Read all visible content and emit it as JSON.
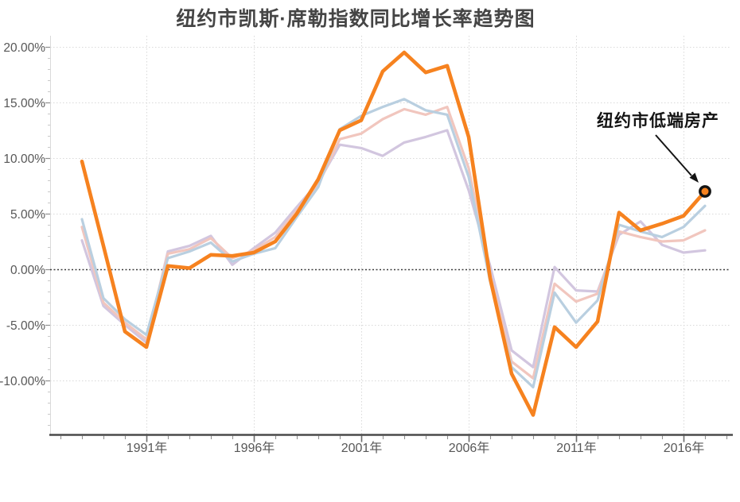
{
  "chart": {
    "title": "纽约市凯斯·席勒指数同比增长率趋势图"
  },
  "colors": {
    "accent_orange": "#f6821f",
    "light_blue": "#b9cfe0",
    "light_pink": "#f1c6be",
    "light_purple": "#d2c6df",
    "grid_light": "#d9d9d9",
    "zero_line": "#3b3b3b",
    "axis_line": "#4a4a4a",
    "tick_major": "#8f8f8f",
    "tick_minor": "#c9c9c9",
    "label_text": "#575757",
    "marker_ring": "#141414"
  },
  "chart_data": {
    "type": "line",
    "title": "纽约市凯斯·席勒指数同比增长率趋势图",
    "xlabel": "",
    "ylabel": "",
    "x": [
      1988,
      1989,
      1990,
      1991,
      1992,
      1993,
      1994,
      1995,
      1996,
      1997,
      1998,
      1999,
      2000,
      2001,
      2002,
      2003,
      2004,
      2005,
      2006,
      2007,
      2008,
      2009,
      2010,
      2011,
      2012,
      2013,
      2014,
      2015,
      2016,
      2017
    ],
    "x_ticks": [
      {
        "year": 1991,
        "label": "1991年"
      },
      {
        "year": 1996,
        "label": "1996年"
      },
      {
        "year": 2001,
        "label": "2001年"
      },
      {
        "year": 2006,
        "label": "2006年"
      },
      {
        "year": 2011,
        "label": "2011年"
      },
      {
        "year": 2016,
        "label": "2016年"
      }
    ],
    "y_ticks": [
      {
        "value": 20,
        "label": "20.00%"
      },
      {
        "value": 15,
        "label": "15.00%"
      },
      {
        "value": 10,
        "label": "10.00%"
      },
      {
        "value": 5,
        "label": "5.00%"
      },
      {
        "value": 0,
        "label": "0.00%"
      },
      {
        "value": -5,
        "label": "-5.00%"
      },
      {
        "value": -10,
        "label": "-10.00%"
      }
    ],
    "ylim": [
      -14.9,
      20.7
    ],
    "grid": true,
    "legend_position": "none",
    "series": [
      {
        "id": "unlabeled-light-purple",
        "name": "",
        "color": "#d2c6df",
        "width": 3.2,
        "emphasis": false,
        "values": [
          2.6,
          -3.3,
          -5.0,
          -6.6,
          1.6,
          2.1,
          3.0,
          0.4,
          1.9,
          3.3,
          5.6,
          7.8,
          11.2,
          10.9,
          10.2,
          11.4,
          11.9,
          12.5,
          7.1,
          0.3,
          -7.3,
          -8.8,
          0.2,
          -1.9,
          -2.0,
          3.1,
          4.3,
          2.2,
          1.5,
          1.7
        ]
      },
      {
        "id": "unlabeled-light-pink",
        "name": "",
        "color": "#f1c6be",
        "width": 3.2,
        "emphasis": false,
        "values": [
          3.8,
          -3.0,
          -4.8,
          -6.3,
          1.4,
          1.8,
          2.8,
          1.0,
          1.7,
          2.9,
          5.3,
          7.6,
          11.7,
          12.2,
          13.5,
          14.4,
          13.9,
          14.6,
          9.1,
          -0.4,
          -8.3,
          -9.8,
          -1.3,
          -2.9,
          -2.2,
          3.4,
          2.9,
          2.5,
          2.6,
          3.5
        ]
      },
      {
        "id": "unlabeled-light-blue",
        "name": "",
        "color": "#b9cfe0",
        "width": 3.2,
        "emphasis": false,
        "values": [
          4.5,
          -2.6,
          -4.5,
          -5.9,
          1.0,
          1.6,
          2.4,
          0.7,
          1.4,
          1.9,
          4.7,
          7.4,
          12.6,
          13.8,
          14.6,
          15.3,
          14.3,
          13.9,
          8.3,
          -1.1,
          -8.8,
          -10.6,
          -2.1,
          -4.8,
          -2.8,
          4.0,
          3.4,
          2.9,
          3.8,
          5.7
        ]
      },
      {
        "id": "highlighted-low-tier",
        "name": "纽约市低端房产",
        "color": "#f6821f",
        "width": 4.6,
        "emphasis": true,
        "values": [
          9.7,
          2.1,
          -5.6,
          -7.0,
          0.3,
          0.1,
          1.3,
          1.2,
          1.5,
          2.5,
          5.0,
          8.1,
          12.5,
          13.4,
          17.8,
          19.5,
          17.7,
          18.3,
          11.9,
          -0.8,
          -9.4,
          -13.1,
          -5.2,
          -7.0,
          -4.7,
          5.1,
          3.5,
          4.1,
          4.8,
          7.0
        ]
      }
    ],
    "annotation": {
      "text": "纽约市低端房产",
      "year": 2017,
      "value": 7.0
    }
  }
}
